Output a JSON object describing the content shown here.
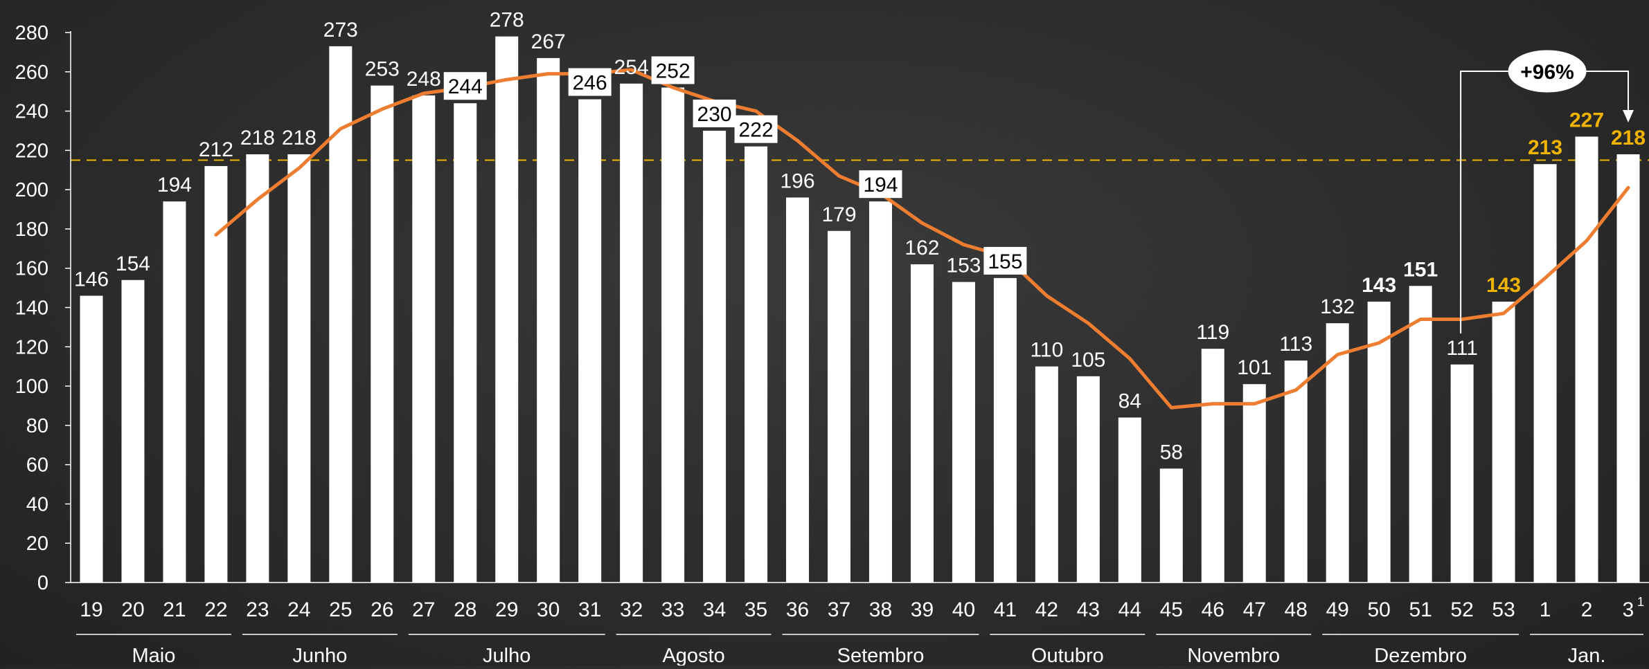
{
  "chart_data": {
    "type": "bar",
    "title": "",
    "xlabel": "",
    "ylabel": "",
    "ylim": [
      0,
      280
    ],
    "yticks": [
      0,
      20,
      40,
      60,
      80,
      100,
      120,
      140,
      160,
      180,
      200,
      220,
      240,
      260,
      280
    ],
    "categories": [
      "19",
      "20",
      "21",
      "22",
      "23",
      "24",
      "25",
      "26",
      "27",
      "28",
      "29",
      "30",
      "31",
      "32",
      "33",
      "34",
      "35",
      "36",
      "37",
      "38",
      "39",
      "40",
      "41",
      "42",
      "43",
      "44",
      "45",
      "46",
      "47",
      "48",
      "49",
      "50",
      "51",
      "52",
      "53",
      "1",
      "2",
      "3"
    ],
    "category_superscripts": {
      "37": "1"
    },
    "series": [
      {
        "type": "bar",
        "values": [
          146,
          154,
          194,
          212,
          218,
          218,
          273,
          253,
          248,
          244,
          278,
          267,
          246,
          254,
          252,
          230,
          222,
          196,
          179,
          194,
          162,
          153,
          155,
          110,
          105,
          84,
          58,
          119,
          101,
          113,
          132,
          143,
          151,
          111,
          143,
          213,
          227,
          218
        ]
      },
      {
        "type": "line",
        "values": [
          null,
          null,
          null,
          177,
          195,
          211,
          231,
          241,
          249,
          252,
          256,
          259,
          259,
          261,
          252,
          245,
          240,
          225,
          207,
          198,
          183,
          172,
          166,
          146,
          132,
          114,
          89,
          91,
          91,
          98,
          116,
          122,
          134,
          134,
          137,
          155,
          174,
          201
        ]
      }
    ],
    "value_labels": [
      "146",
      "154",
      "194",
      "212",
      "218",
      "218",
      "273",
      "253",
      "248",
      "244",
      "278",
      "267",
      "246",
      "254",
      "252",
      "230",
      "222",
      "196",
      "179",
      "194",
      "162",
      "153",
      "155",
      "110",
      "105",
      "84",
      "58",
      "119",
      "101",
      "113",
      "132",
      "143",
      "151",
      "111",
      "143",
      "213",
      "227",
      "218"
    ],
    "boxed_labels": [
      9,
      12,
      14,
      15,
      16,
      19,
      22
    ],
    "bold_labels": [
      31,
      32
    ],
    "highlight_labels": [
      34,
      35,
      36,
      37
    ],
    "reference_line": {
      "value": 215
    },
    "month_groups": [
      {
        "label": "Maio",
        "start": 0,
        "end": 3
      },
      {
        "label": "Junho",
        "start": 4,
        "end": 7
      },
      {
        "label": "Julho",
        "start": 8,
        "end": 12
      },
      {
        "label": "Agosto",
        "start": 13,
        "end": 16
      },
      {
        "label": "Setembro",
        "start": 17,
        "end": 21
      },
      {
        "label": "Outubro",
        "start": 22,
        "end": 25
      },
      {
        "label": "Novembro",
        "start": 26,
        "end": 29
      },
      {
        "label": "Dezembro",
        "start": 30,
        "end": 34
      },
      {
        "label": "Jan.",
        "start": 35,
        "end": 37
      }
    ],
    "annotation": {
      "text": "+96%",
      "from": 33,
      "to": 37
    },
    "grid": false,
    "legend": "none",
    "colors": {
      "bar": "#ffffff",
      "line": "#ed7d31",
      "reference": "#f0b400",
      "highlight_label": "#f0b400",
      "text": "#ffffff",
      "box_label_bg": "#ffffff",
      "box_label_text": "#000000"
    }
  }
}
